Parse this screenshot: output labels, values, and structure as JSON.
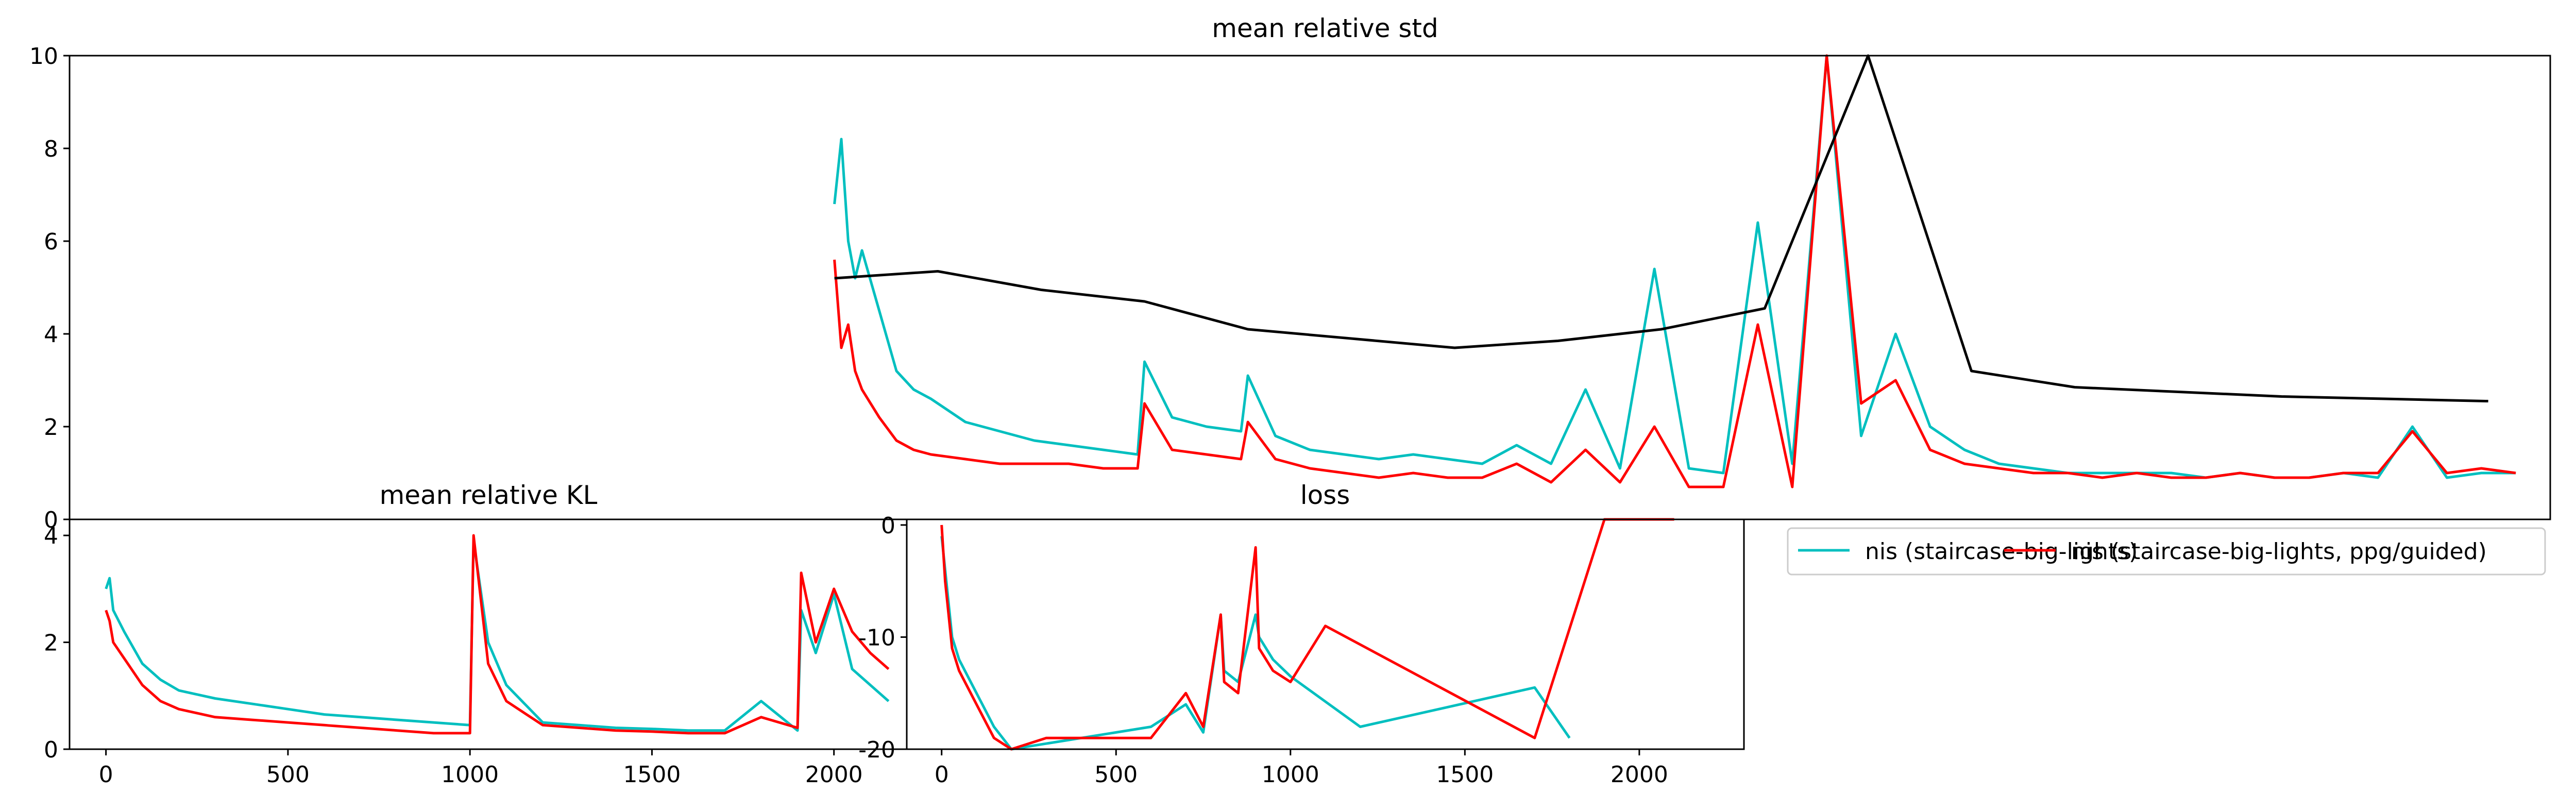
{
  "colors": {
    "nis": "#00bfbf",
    "ppg": "#ff0000",
    "ref": "#000000"
  },
  "legend": {
    "items": [
      {
        "label": "nis (staircase-big-lights)",
        "color": "#00bfbf"
      },
      {
        "label": "nis (staircase-big-lights, ppg/guided)",
        "color": "#ff0000"
      }
    ]
  },
  "chart_data": [
    {
      "type": "line",
      "title": "mean relative std",
      "xlim": [
        -2000,
        5200
      ],
      "ylim": [
        0,
        10
      ],
      "yticks": [
        0,
        2,
        4,
        6,
        8,
        10
      ],
      "xticks": [],
      "grid": false,
      "series": [
        {
          "name": "nis (staircase-big-lights)",
          "color": "#00bfbf",
          "x": [
            220,
            240,
            260,
            280,
            300,
            350,
            400,
            450,
            500,
            600,
            700,
            800,
            900,
            1000,
            1100,
            1120,
            1200,
            1300,
            1400,
            1420,
            1500,
            1600,
            1700,
            1800,
            1900,
            2000,
            2100,
            2200,
            2300,
            2400,
            2500,
            2600,
            2700,
            2800,
            2900,
            3000,
            3100,
            3200,
            3300,
            3400,
            3500,
            3600,
            3700,
            3800,
            3900,
            4000,
            4100,
            4200,
            4300,
            4400,
            4500,
            4600,
            4700,
            4800,
            4900,
            5000,
            5100
          ],
          "y": [
            6.8,
            8.2,
            6.0,
            5.2,
            5.8,
            4.5,
            3.2,
            2.8,
            2.6,
            2.1,
            1.9,
            1.7,
            1.6,
            1.5,
            1.4,
            3.4,
            2.2,
            2.0,
            1.9,
            3.1,
            1.8,
            1.5,
            1.4,
            1.3,
            1.4,
            1.3,
            1.2,
            1.6,
            1.2,
            2.8,
            1.1,
            5.4,
            1.1,
            1.0,
            6.4,
            1.2,
            10.0,
            1.8,
            4.0,
            2.0,
            1.5,
            1.2,
            1.1,
            1.0,
            1.0,
            1.0,
            1.0,
            0.9,
            1.0,
            0.9,
            0.9,
            1.0,
            0.9,
            2.0,
            0.9,
            1.0,
            1.0
          ]
        },
        {
          "name": "nis (staircase-big-lights, ppg/guided)",
          "color": "#ff0000",
          "x": [
            220,
            240,
            260,
            280,
            300,
            350,
            400,
            450,
            500,
            600,
            700,
            800,
            900,
            1000,
            1100,
            1120,
            1200,
            1300,
            1400,
            1420,
            1500,
            1600,
            1700,
            1800,
            1900,
            2000,
            2100,
            2200,
            2300,
            2400,
            2500,
            2600,
            2700,
            2800,
            2900,
            3000,
            3100,
            3200,
            3300,
            3400,
            3500,
            3600,
            3700,
            3800,
            3900,
            4000,
            4100,
            4200,
            4300,
            4400,
            4500,
            4600,
            4700,
            4800,
            4900,
            5000,
            5100
          ],
          "y": [
            5.6,
            3.7,
            4.2,
            3.2,
            2.8,
            2.2,
            1.7,
            1.5,
            1.4,
            1.3,
            1.2,
            1.2,
            1.2,
            1.1,
            1.1,
            2.5,
            1.5,
            1.4,
            1.3,
            2.1,
            1.3,
            1.1,
            1.0,
            0.9,
            1.0,
            0.9,
            0.9,
            1.2,
            0.8,
            1.5,
            0.8,
            2.0,
            0.7,
            0.7,
            4.2,
            0.7,
            10.0,
            2.5,
            3.0,
            1.5,
            1.2,
            1.1,
            1.0,
            1.0,
            0.9,
            1.0,
            0.9,
            0.9,
            1.0,
            0.9,
            0.9,
            1.0,
            1.0,
            1.9,
            1.0,
            1.1,
            1.0
          ]
        },
        {
          "name": "",
          "color": "#000000",
          "x": [
            220,
            520,
            820,
            1120,
            1420,
            1720,
            2020,
            2320,
            2620,
            2920,
            3220,
            3520,
            3820,
            4120,
            4420,
            4720,
            5020
          ],
          "y": [
            5.2,
            5.35,
            4.95,
            4.7,
            4.1,
            3.9,
            3.7,
            3.85,
            4.1,
            4.55,
            10.0,
            3.2,
            2.85,
            2.75,
            2.65,
            2.6,
            2.55
          ]
        }
      ]
    },
    {
      "type": "line",
      "title": "mean relative KL",
      "xlim": [
        -100,
        2200
      ],
      "ylim": [
        0,
        4.3
      ],
      "yticks": [
        0,
        2,
        4
      ],
      "xticks": [
        0,
        500,
        1000,
        1500,
        2000
      ],
      "grid": false,
      "series": [
        {
          "name": "nis (staircase-big-lights)",
          "color": "#00bfbf",
          "x": [
            0,
            10,
            20,
            50,
            100,
            150,
            200,
            300,
            400,
            500,
            600,
            700,
            800,
            900,
            1000,
            1010,
            1050,
            1100,
            1200,
            1300,
            1400,
            1500,
            1600,
            1700,
            1800,
            1900,
            1910,
            1950,
            2000,
            2050,
            2100,
            2150
          ],
          "y": [
            3.0,
            3.2,
            2.6,
            2.2,
            1.6,
            1.3,
            1.1,
            0.95,
            0.85,
            0.75,
            0.65,
            0.6,
            0.55,
            0.5,
            0.45,
            3.9,
            2.0,
            1.2,
            0.5,
            0.45,
            0.4,
            0.38,
            0.35,
            0.35,
            0.9,
            0.35,
            2.6,
            1.8,
            2.9,
            1.5,
            1.2,
            0.9
          ]
        },
        {
          "name": "nis (staircase-big-lights, ppg/guided)",
          "color": "#ff0000",
          "x": [
            0,
            10,
            20,
            50,
            100,
            150,
            200,
            300,
            400,
            500,
            600,
            700,
            800,
            900,
            1000,
            1010,
            1050,
            1100,
            1200,
            1300,
            1400,
            1500,
            1600,
            1700,
            1800,
            1900,
            1910,
            1950,
            2000,
            2050,
            2100,
            2150
          ],
          "y": [
            2.6,
            2.4,
            2.0,
            1.7,
            1.2,
            0.9,
            0.75,
            0.6,
            0.55,
            0.5,
            0.45,
            0.4,
            0.35,
            0.3,
            0.3,
            4.0,
            1.6,
            0.9,
            0.45,
            0.4,
            0.35,
            0.33,
            0.3,
            0.3,
            0.6,
            0.4,
            3.3,
            2.0,
            3.0,
            2.2,
            1.8,
            1.5
          ]
        }
      ]
    },
    {
      "type": "line",
      "title": "loss",
      "xlim": [
        -100,
        2300
      ],
      "ylim": [
        -20,
        0.5
      ],
      "yticks": [
        -20,
        -10,
        0
      ],
      "xticks": [
        0,
        500,
        1000,
        1500,
        2000
      ],
      "grid": false,
      "series": [
        {
          "name": "nis (staircase-big-lights)",
          "color": "#00bfbf",
          "x": [
            0,
            10,
            30,
            50,
            100,
            150,
            200,
            600,
            700,
            750,
            800,
            810,
            850,
            900,
            910,
            950,
            1000,
            1200,
            1700,
            1800
          ],
          "y": [
            -1,
            -4,
            -10,
            -12,
            -15,
            -18,
            -20,
            -18,
            -16,
            -18.5,
            -8,
            -13,
            -14,
            -8,
            -10,
            -12,
            -13.5,
            -18,
            -14.5,
            -19
          ]
        },
        {
          "name": "nis (staircase-big-lights, ppg/guided)",
          "color": "#ff0000",
          "x": [
            0,
            10,
            30,
            50,
            100,
            150,
            200,
            300,
            600,
            700,
            750,
            800,
            810,
            850,
            900,
            910,
            950,
            1000,
            1100,
            1700,
            1900,
            2000,
            2100
          ],
          "y": [
            0,
            -5,
            -11,
            -13,
            -16,
            -19,
            -20,
            -19,
            -19,
            -15,
            -18,
            -8,
            -14,
            -15,
            -2,
            -11,
            -13,
            -14,
            -9,
            -19,
            0.5,
            0.5,
            0.5
          ]
        }
      ]
    }
  ]
}
